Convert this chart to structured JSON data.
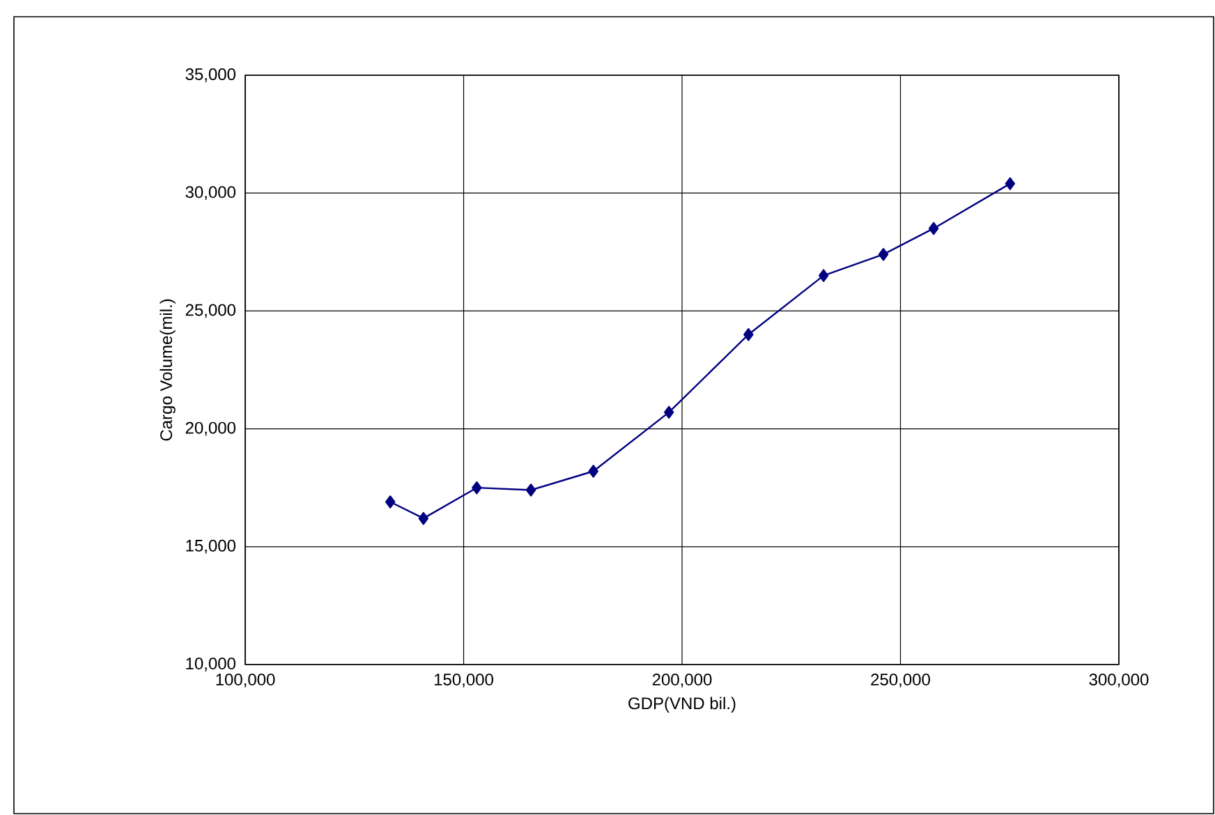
{
  "chart_data": {
    "type": "line",
    "xlabel": "GDP(VND bil.)",
    "ylabel": "Cargo Volume(mil.)",
    "x": [
      133200,
      140800,
      153000,
      165400,
      179700,
      197000,
      215200,
      232400,
      246100,
      257600,
      275100
    ],
    "series": [
      {
        "color": "#000080",
        "values": [
          16900,
          16200,
          17500,
          17400,
          18200,
          20700,
          24000,
          26500,
          27400,
          28500,
          30400
        ]
      }
    ],
    "xlim": [
      100000,
      300000
    ],
    "ylim": [
      10000,
      35000
    ],
    "xticks": [
      {
        "value": 100000,
        "label": "100,000"
      },
      {
        "value": 150000,
        "label": "150,000"
      },
      {
        "value": 200000,
        "label": "200,000"
      },
      {
        "value": 250000,
        "label": "250,000"
      },
      {
        "value": 300000,
        "label": "300,000"
      }
    ],
    "yticks": [
      {
        "value": 10000,
        "label": "10,000"
      },
      {
        "value": 15000,
        "label": "15,000"
      },
      {
        "value": 20000,
        "label": "20,000"
      },
      {
        "value": 25000,
        "label": "25,000"
      },
      {
        "value": 30000,
        "label": "30,000"
      },
      {
        "value": 35000,
        "label": "35,000"
      }
    ],
    "grid": true,
    "marker": "diamond",
    "line_style": "solid"
  }
}
